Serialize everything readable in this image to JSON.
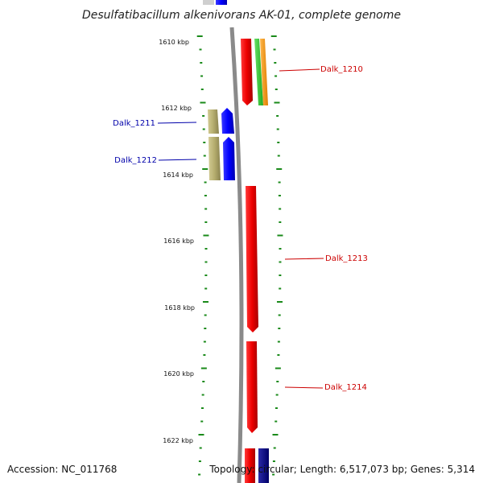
{
  "title": "Desulfatibacillum alkenivorans AK-01, complete genome",
  "accession": "Accession: NC_011768",
  "topology": "Topology: circular; Length: 6,517,073 bp; Genes: 5,314",
  "ticks": [
    "1610 kbp",
    "1612 kbp",
    "1614 kbp",
    "1616 kbp",
    "1618 kbp",
    "1620 kbp",
    "1622 kbp"
  ],
  "genes": [
    {
      "label": "Dalk_1210",
      "color": "#cc0000"
    },
    {
      "label": "Dalk_1211",
      "color": "#0000aa"
    },
    {
      "label": "Dalk_1212",
      "color": "#0000aa"
    },
    {
      "label": "Dalk_1213",
      "color": "#cc0000"
    },
    {
      "label": "Dalk_1214",
      "color": "#cc0000"
    }
  ],
  "colors": {
    "backbone": "#8a8a8a",
    "tick": "#1a8a1a",
    "forward": "#ff0000",
    "reverse": "#0000ff",
    "olive": "#b5ad6e",
    "green": "#33cc33",
    "orange": "#ff9900",
    "navy": "#000088"
  }
}
